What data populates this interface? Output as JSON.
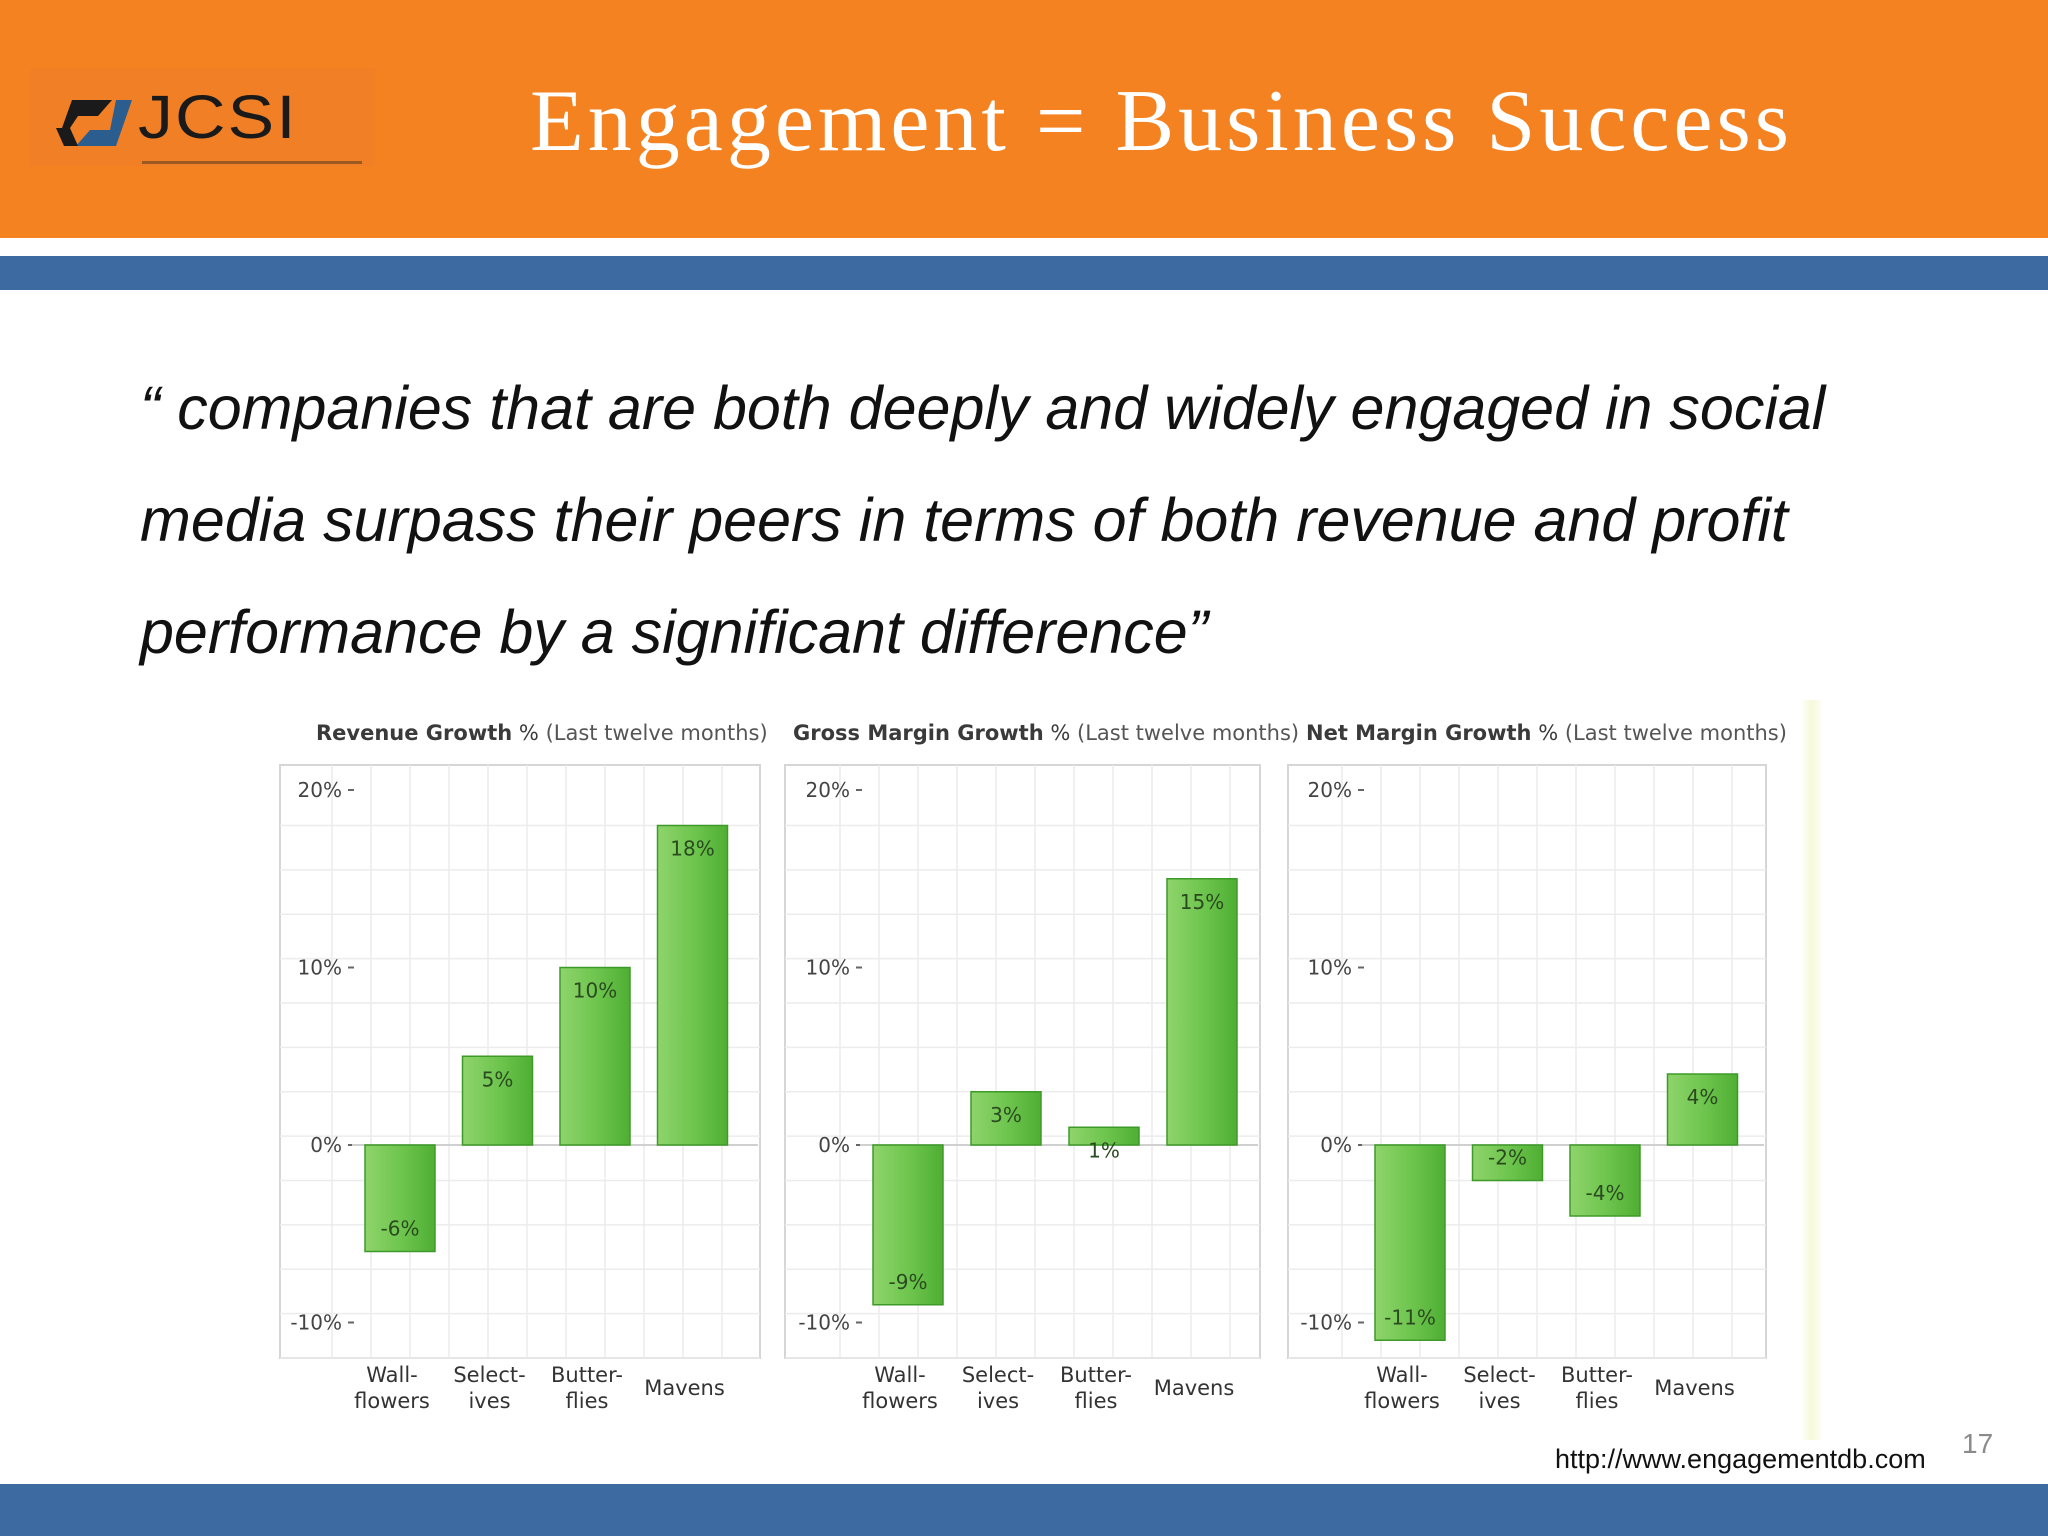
{
  "slide": {
    "title": "Engagement = Business Success",
    "logo_text": "JCSI",
    "quote_line1": "“ companies that are both deeply and widely engaged in social",
    "quote_line2": "media surpass their peers in terms of both revenue and profit",
    "quote_line3": "performance by a significant difference”",
    "source": "http://www.engagementdb.com",
    "page_number": "17",
    "colors": {
      "header": "#f58220",
      "band": "#3d6aa1",
      "bar": "#6cc44c"
    }
  },
  "chart_data": [
    {
      "type": "bar",
      "title_bold": "Revenue Growth",
      "title_pct": "%",
      "title_span": "(Last twelve months)",
      "categories": [
        [
          "Wall-",
          "flowers"
        ],
        [
          "Select-",
          "ives"
        ],
        [
          "Butter-",
          "flies"
        ],
        [
          "Mavens"
        ]
      ],
      "values": [
        -6,
        5,
        10,
        18
      ],
      "value_labels": [
        "-6%",
        "5%",
        "10%",
        "18%"
      ],
      "yticks": [
        20,
        10,
        0,
        -10
      ],
      "ytick_labels": [
        "20%",
        "10%",
        "0%",
        "-10%"
      ],
      "ylim": [
        -12,
        20
      ],
      "grid": true
    },
    {
      "type": "bar",
      "title_bold": "Gross Margin Growth",
      "title_pct": "%",
      "title_span": "(Last twelve months)",
      "categories": [
        [
          "Wall-",
          "flowers"
        ],
        [
          "Select-",
          "ives"
        ],
        [
          "Butter-",
          "flies"
        ],
        [
          "Mavens"
        ]
      ],
      "values": [
        -9,
        3,
        1,
        15
      ],
      "value_labels": [
        "-9%",
        "3%",
        "1%",
        "15%"
      ],
      "yticks": [
        20,
        10,
        0,
        -10
      ],
      "ytick_labels": [
        "20%",
        "10%",
        "0%",
        "-10%"
      ],
      "ylim": [
        -12,
        20
      ],
      "grid": true
    },
    {
      "type": "bar",
      "title_bold": "Net Margin Growth",
      "title_pct": "%",
      "title_span": "(Last twelve months)",
      "categories": [
        [
          "Wall-",
          "flowers"
        ],
        [
          "Select-",
          "ives"
        ],
        [
          "Butter-",
          "flies"
        ],
        [
          "Mavens"
        ]
      ],
      "values": [
        -11,
        -2,
        -4,
        4
      ],
      "value_labels": [
        "-11%",
        "-2%",
        "-4%",
        "4%"
      ],
      "yticks": [
        20,
        10,
        0,
        -10
      ],
      "ytick_labels": [
        "20%",
        "10%",
        "0%",
        "-10%"
      ],
      "ylim": [
        -12,
        20
      ],
      "grid": true
    }
  ]
}
